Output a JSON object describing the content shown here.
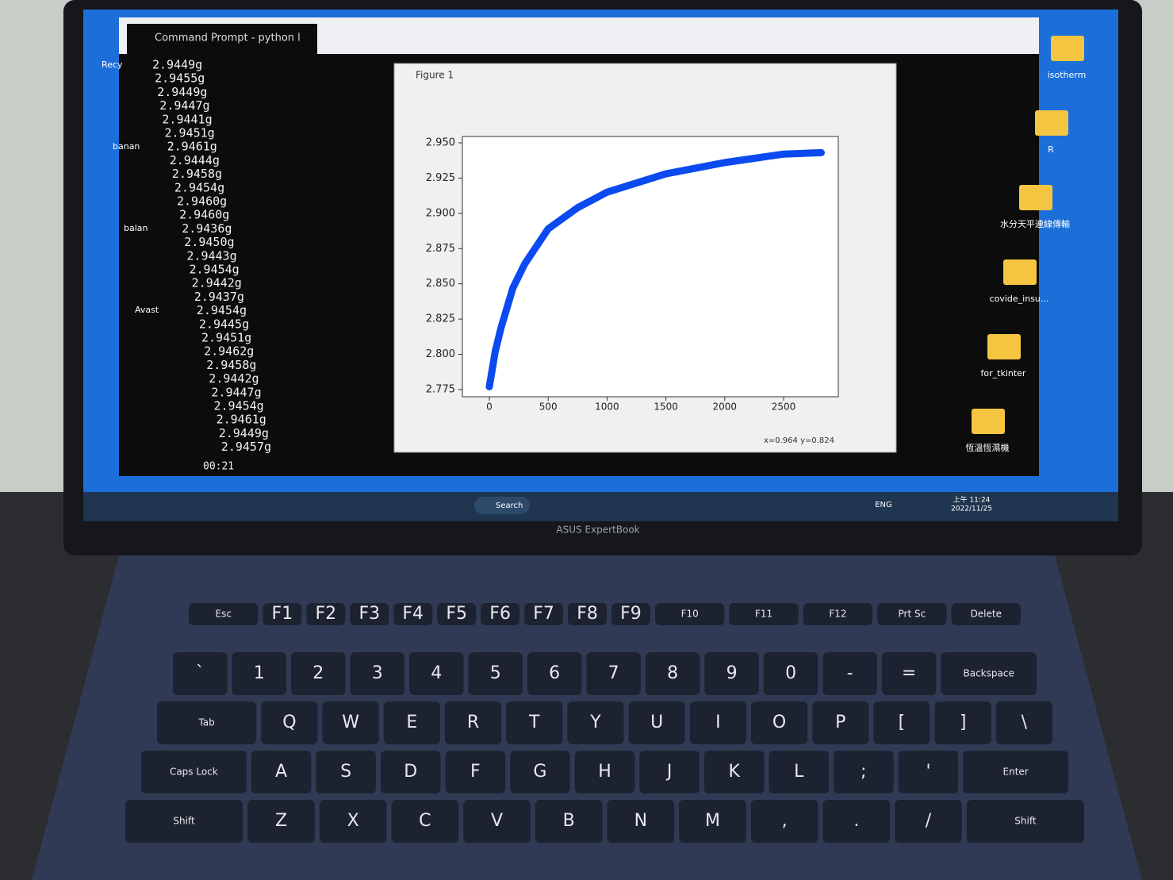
{
  "terminal": {
    "title": "Command Prompt - python l",
    "lines": [
      "2.9449g",
      "2.9455g",
      "2.9449g",
      "2.9447g",
      "2.9441g",
      "2.9451g",
      "2.9461g",
      "2.9444g",
      "2.9458g",
      "2.9454g",
      "2.9460g",
      "2.9460g",
      "2.9436g",
      "2.9450g",
      "2.9443g",
      "2.9454g",
      "2.9442g",
      "2.9437g",
      "2.9454g",
      "2.9445g",
      "2.9451g",
      "2.9462g",
      "2.9458g",
      "2.9442g",
      "2.9447g",
      "2.9454g",
      "2.9461g",
      "2.9449g",
      "2.9457g"
    ],
    "timer": "00:21"
  },
  "figure": {
    "title": "Figure 1",
    "status": "x=0.964 y=0.824"
  },
  "chart_data": {
    "type": "line",
    "x": [
      0,
      50,
      100,
      200,
      300,
      500,
      750,
      1000,
      1500,
      2000,
      2500,
      2820
    ],
    "series": [
      {
        "color": "#0a4af0",
        "values": [
          2.777,
          2.802,
          2.819,
          2.847,
          2.864,
          2.889,
          2.904,
          2.915,
          2.928,
          2.936,
          2.942,
          2.943
        ]
      }
    ],
    "xlim": [
      -229,
      2965
    ],
    "xticks": [
      0,
      500,
      1000,
      1500,
      2000,
      2500
    ],
    "ylim": [
      2.7699,
      2.9545
    ],
    "yticks": [
      2.775,
      {
        "value": 2.8,
        "label": "2.800"
      },
      2.825,
      {
        "value": 2.85,
        "label": "2.850"
      },
      2.875,
      {
        "value": 2.9,
        "label": "2.900"
      },
      2.925,
      {
        "value": 2.95,
        "label": "2.950"
      }
    ]
  },
  "desktop": {
    "icons_right": [
      "isotherm",
      "R",
      "水分天平連線傳輸",
      "covide_insu...",
      "for_tkinter",
      "恆溫恆濕機"
    ],
    "icons_left": [
      "Recy",
      "banan",
      "balan",
      "Avast"
    ]
  },
  "taskbar": {
    "search": "Search",
    "lang": "ENG",
    "time": "上午 11:24",
    "date": "2022/11/25"
  },
  "laptop": {
    "brand": "ASUS ExpertBook",
    "keyboard": [
      [
        "Esc",
        "F1",
        "F2",
        "F3",
        "F4",
        "F5",
        "F6",
        "F7",
        "F8",
        "F9",
        "F10",
        "F11",
        "F12",
        "Prt Sc",
        "Delete"
      ],
      [
        "`",
        "1",
        "2",
        "3",
        "4",
        "5",
        "6",
        "7",
        "8",
        "9",
        "0",
        "-",
        "=",
        "Backspace"
      ],
      [
        "Tab",
        "Q",
        "W",
        "E",
        "R",
        "T",
        "Y",
        "U",
        "I",
        "O",
        "P",
        "[",
        "]",
        "\\"
      ],
      [
        "Caps Lock",
        "A",
        "S",
        "D",
        "F",
        "G",
        "H",
        "J",
        "K",
        "L",
        ";",
        "'",
        "Enter"
      ],
      [
        "Shift",
        "Z",
        "X",
        "C",
        "V",
        "B",
        "N",
        "M",
        ",",
        ".",
        "/",
        "Shift"
      ]
    ]
  }
}
